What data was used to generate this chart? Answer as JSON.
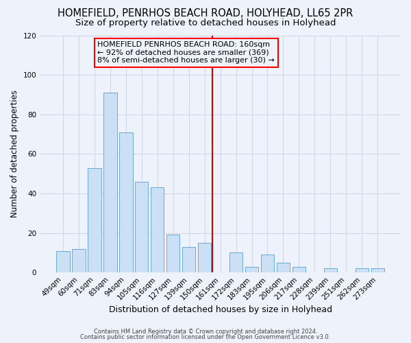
{
  "title": "HOMEFIELD, PENRHOS BEACH ROAD, HOLYHEAD, LL65 2PR",
  "subtitle": "Size of property relative to detached houses in Holyhead",
  "xlabel": "Distribution of detached houses by size in Holyhead",
  "ylabel": "Number of detached properties",
  "bar_labels": [
    "49sqm",
    "60sqm",
    "71sqm",
    "83sqm",
    "94sqm",
    "105sqm",
    "116sqm",
    "127sqm",
    "139sqm",
    "150sqm",
    "161sqm",
    "172sqm",
    "183sqm",
    "195sqm",
    "206sqm",
    "217sqm",
    "228sqm",
    "239sqm",
    "251sqm",
    "262sqm",
    "273sqm"
  ],
  "bar_values": [
    11,
    12,
    53,
    91,
    71,
    46,
    43,
    19,
    13,
    15,
    0,
    10,
    3,
    9,
    5,
    3,
    0,
    2,
    0,
    2,
    2
  ],
  "bar_color": "#cce0f5",
  "bar_edgecolor": "#6aaad4",
  "vline_color": "#cc0000",
  "ylim": [
    0,
    120
  ],
  "yticks": [
    0,
    20,
    40,
    60,
    80,
    100,
    120
  ],
  "annotation_line1": "HOMEFIELD PENRHOS BEACH ROAD: 160sqm",
  "annotation_line2": "← 92% of detached houses are smaller (369)",
  "annotation_line3": "8% of semi-detached houses are larger (30) →",
  "footer1": "Contains HM Land Registry data © Crown copyright and database right 2024.",
  "footer2": "Contains public sector information licensed under the Open Government Licence v3.0.",
  "bg_color": "#eef2fa",
  "grid_color": "#d0d8e8",
  "title_fontsize": 10.5,
  "subtitle_fontsize": 9.5,
  "xlabel_fontsize": 9,
  "ylabel_fontsize": 8.5,
  "tick_fontsize": 7.5,
  "annotation_fontsize": 8,
  "footer_fontsize": 6.0
}
